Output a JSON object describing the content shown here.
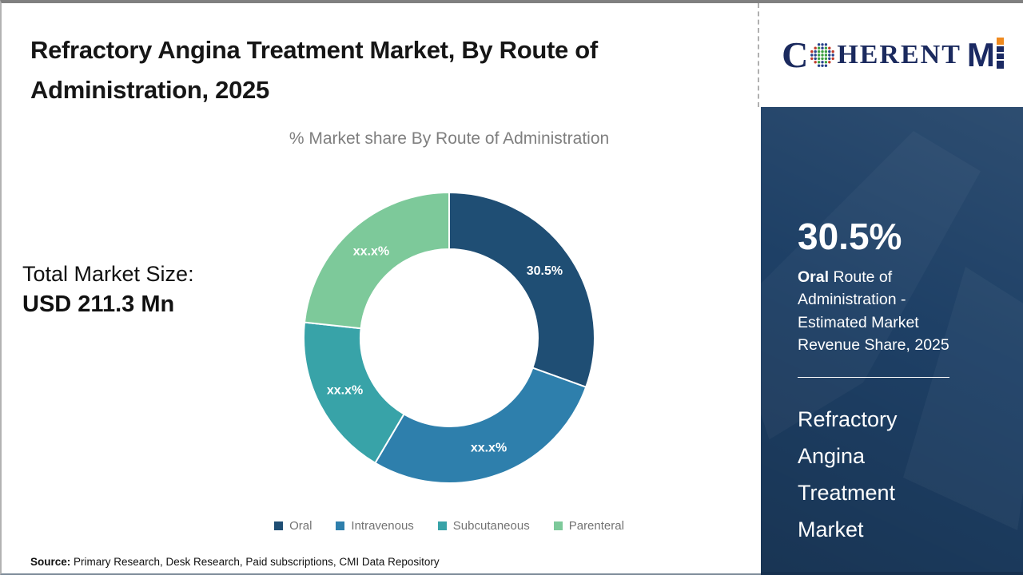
{
  "title": "Refractory Angina Treatment Market, By Route of Administration, 2025",
  "chart_subtitle": "% Market share By Route of Administration",
  "total_market": {
    "label": "Total Market Size:",
    "value": "USD 211.3 Mn"
  },
  "chart_data": {
    "type": "pie",
    "subtype": "donut",
    "title": "% Market share By Route of Administration",
    "categories": [
      "Oral",
      "Intravenous",
      "Subcutaneous",
      "Parenteral"
    ],
    "values": [
      30.5,
      28.0,
      18.2,
      23.3
    ],
    "value_labels": [
      "30.5%",
      "xx.x%",
      "xx.x%",
      "xx.x%"
    ],
    "colors": [
      "#1f4e74",
      "#2e7fac",
      "#38a3a8",
      "#7dc99a"
    ],
    "legend_position": "bottom",
    "start_angle_deg": 0,
    "direction": "clockwise"
  },
  "source": {
    "label": "Source:",
    "text": " Primary Research, Desk Research, Paid subscriptions, CMI Data Repository"
  },
  "logo": {
    "part_c": "C",
    "part_oherent": "HERENT",
    "part_m": "M"
  },
  "side_panel": {
    "stat_value": "30.5%",
    "stat_desc_bold": "Oral",
    "stat_desc_rest": " Route of Administration - Estimated Market Revenue Share, 2025",
    "market_name": "Refractory Angina Treatment Market",
    "panel_bg": "#1e4066",
    "panel_footer_bg": "#16304f"
  }
}
